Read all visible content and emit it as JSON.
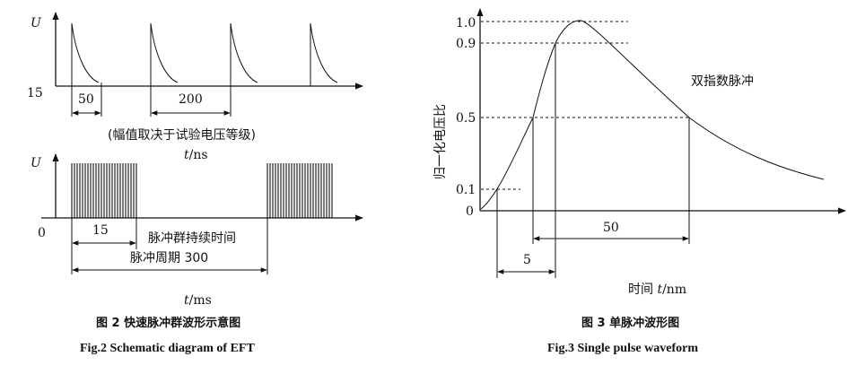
{
  "fig2": {
    "top": {
      "y_label": "U",
      "origin_label": "15",
      "dim_a": "50",
      "dim_b": "200",
      "note": "(幅值取决于试验电压等级)",
      "x_unit_italic": "t",
      "x_unit_rest": "/ns"
    },
    "bottom": {
      "y_label": "U",
      "origin_label": "0",
      "dim_burst": "15",
      "burst_text": "脉冲群持续时间",
      "period_text": "脉冲周期 300",
      "x_unit_italic": "t",
      "x_unit_rest": "/ms"
    },
    "caption_cn": "图 2   快速脉冲群波形示意图",
    "caption_en": "Fig.2   Schematic diagram of EFT"
  },
  "fig3": {
    "y_label": "归一化电压比",
    "y_ticks": [
      "1.0",
      "0.9",
      "0.5",
      "0.1",
      "0"
    ],
    "curve_label": "双指数脉冲",
    "dim_50": "50",
    "dim_5": "5",
    "x_label_prefix": "时间 ",
    "x_label_italic": "t",
    "x_label_rest": "/nm",
    "caption_cn": "图 3   单脉冲波形图",
    "caption_en": "Fig.3   Single pulse waveform"
  }
}
